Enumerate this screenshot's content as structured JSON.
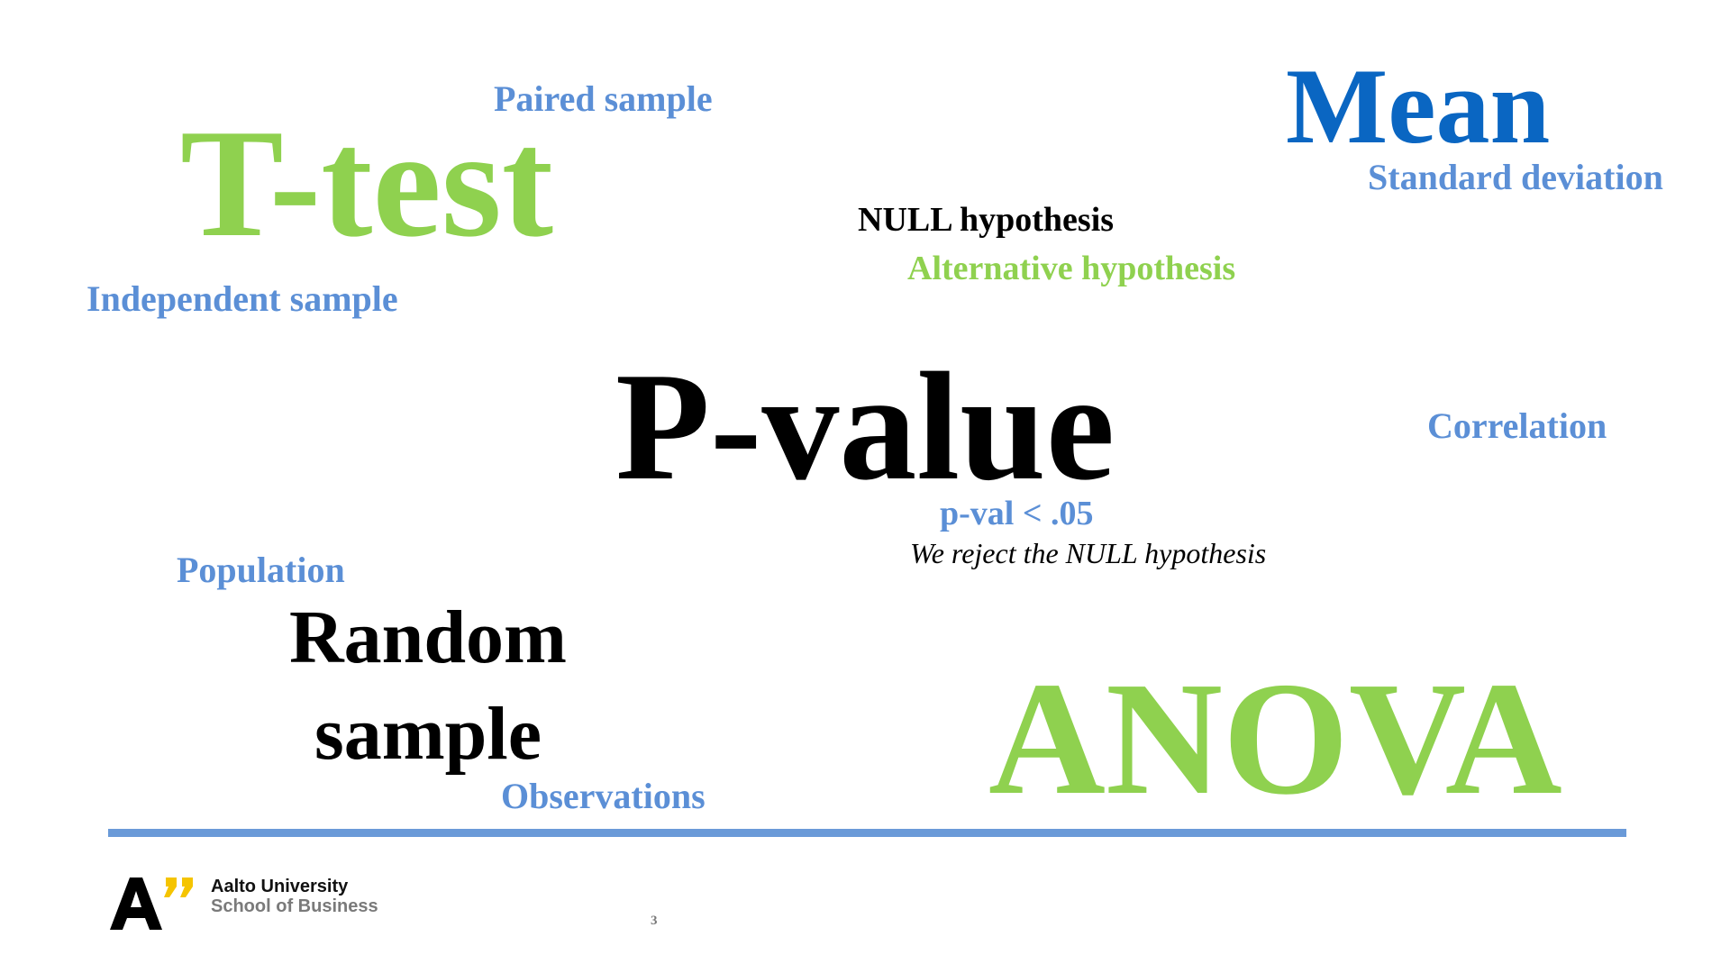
{
  "slide": {
    "words": {
      "paired_sample": "Paired sample",
      "t_test": "T-test",
      "mean": "Mean",
      "standard_deviation": "Standard deviation",
      "null_hypothesis": "NULL hypothesis",
      "alternative_hypothesis": "Alternative hypothesis",
      "independent_sample": "Independent sample",
      "p_value": "P-value",
      "correlation": "Correlation",
      "p_val_threshold": "p-val < .05",
      "reject_statement": "We reject the NULL hypothesis",
      "population": "Population",
      "random_sample": "Random sample",
      "anova": "ANOVA",
      "observations": "Observations"
    },
    "footer": {
      "university": "Aalto University",
      "school": "School of Business",
      "page_number": "3"
    }
  },
  "colors": {
    "blue_light": "#5b8fd6",
    "blue_dark": "#0a66c2",
    "green": "#8fd14f",
    "black": "#000000",
    "rule": "#6a9ad8",
    "logo_yellow": "#f5c400"
  }
}
